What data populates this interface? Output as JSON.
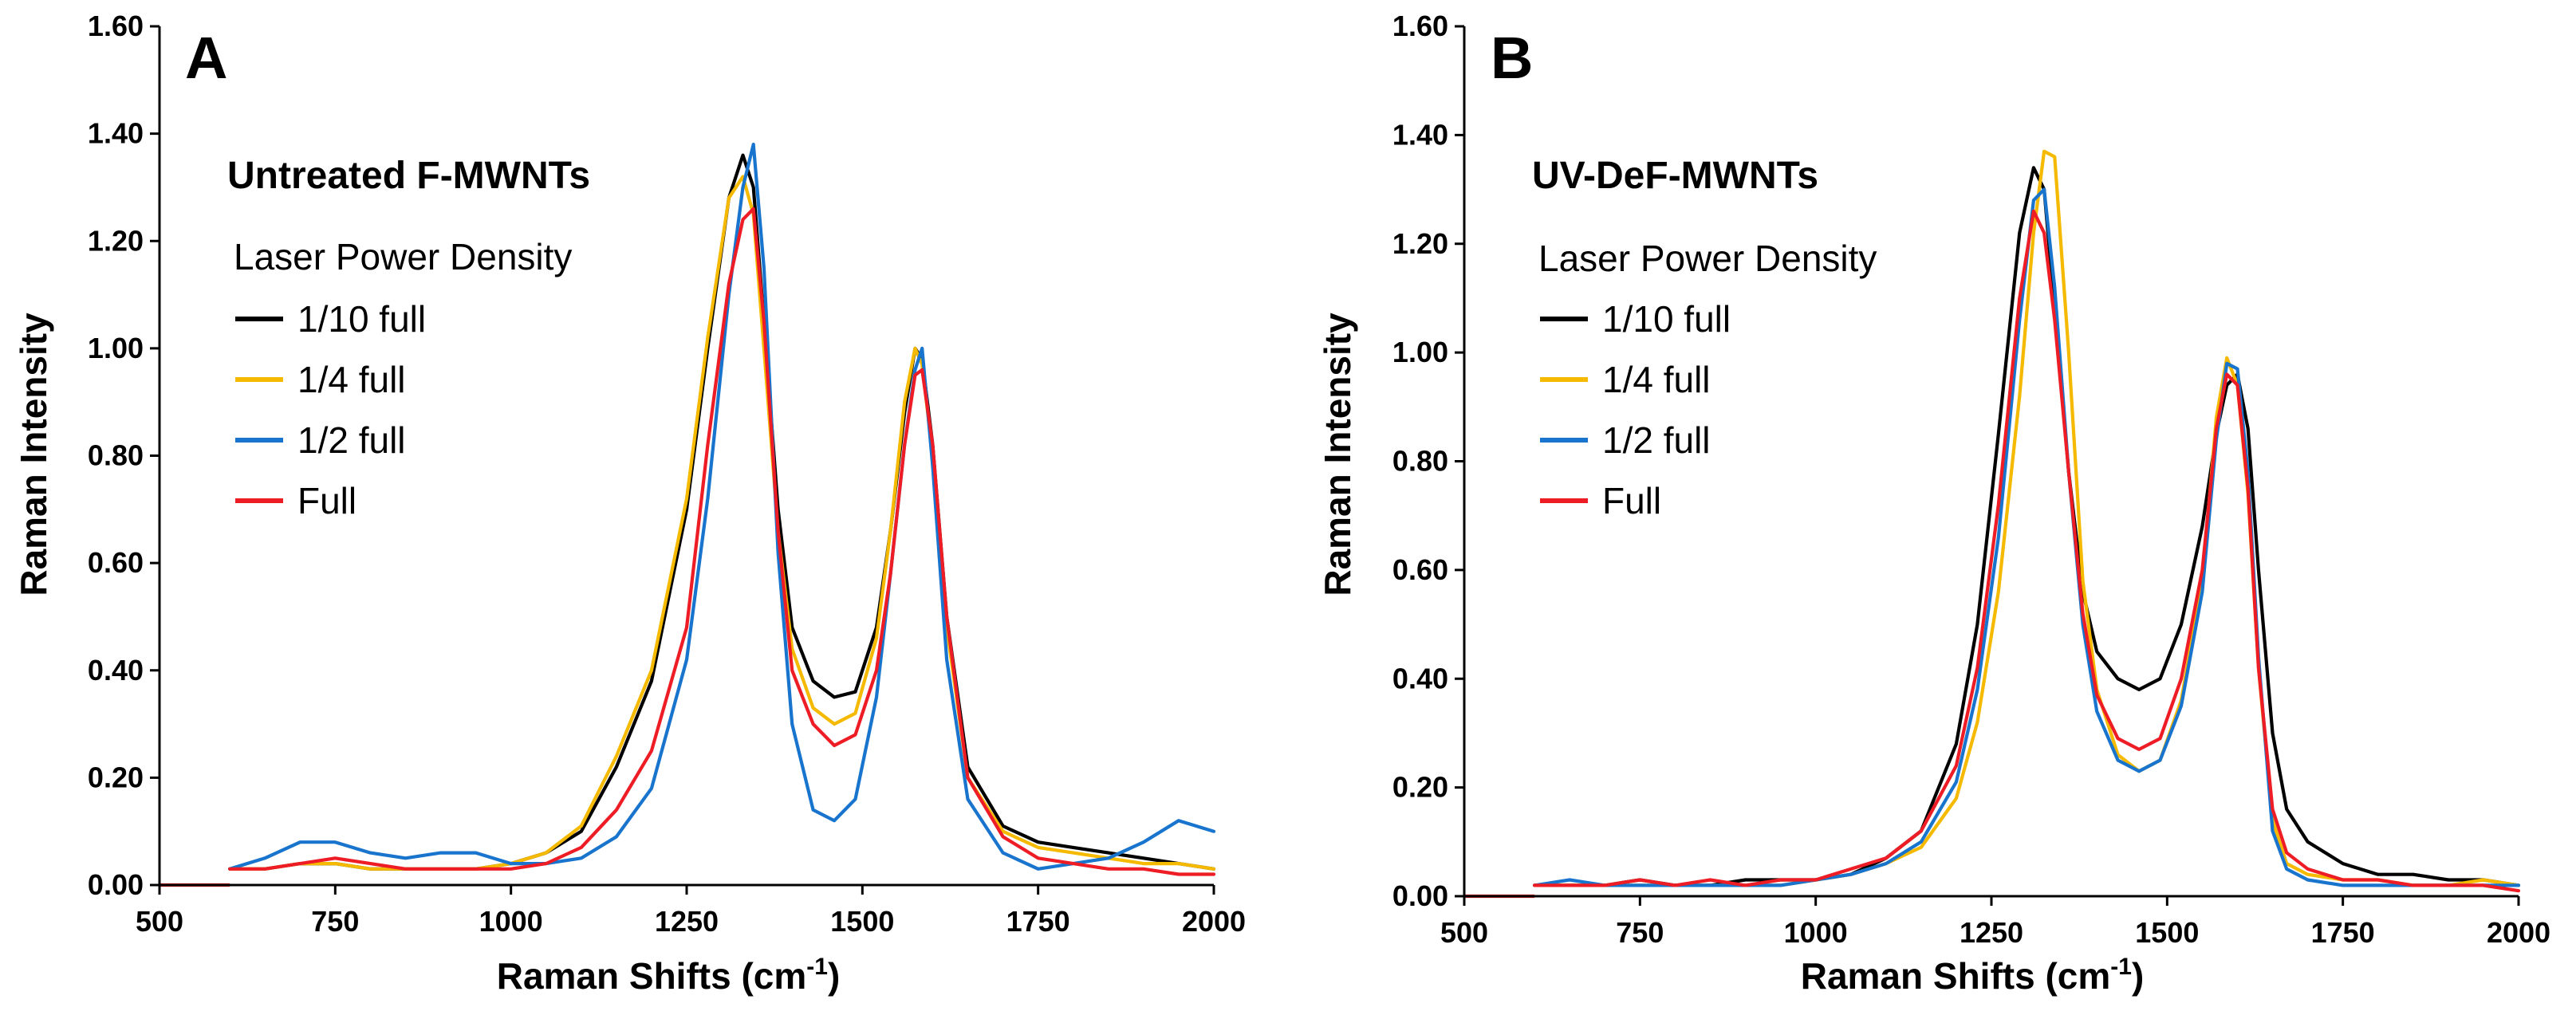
{
  "chart_data": [
    {
      "type": "line",
      "panel_label": "A",
      "title": "Untreated F-MWNTs",
      "xlabel": "Raman Shifts (cm",
      "xlabel_sup": "-1",
      "xlabel_end": ")",
      "ylabel": "Raman Intensity",
      "xlim": [
        500,
        2000
      ],
      "ylim": [
        0,
        1.6
      ],
      "x_ticks": [
        "500",
        "750",
        "1000",
        "1250",
        "1500",
        "1750",
        "2000"
      ],
      "y_ticks": [
        "0.00",
        "0.20",
        "0.40",
        "0.60",
        "0.80",
        "1.00",
        "1.20",
        "1.40",
        "1.60"
      ],
      "legend_title": "Laser Power Density",
      "legend_position": "top-left",
      "series": [
        {
          "name": "1/10 full",
          "color": "#000000",
          "x": [
            600,
            650,
            700,
            750,
            800,
            850,
            900,
            950,
            1000,
            1050,
            1100,
            1150,
            1200,
            1250,
            1280,
            1310,
            1330,
            1345,
            1360,
            1380,
            1400,
            1430,
            1460,
            1490,
            1520,
            1540,
            1560,
            1575,
            1585,
            1600,
            1620,
            1650,
            1700,
            1750,
            1800,
            1850,
            1900,
            1950,
            2000
          ],
          "y": [
            0.03,
            0.03,
            0.04,
            0.04,
            0.03,
            0.03,
            0.03,
            0.03,
            0.04,
            0.06,
            0.1,
            0.22,
            0.38,
            0.7,
            1.0,
            1.28,
            1.36,
            1.3,
            1.05,
            0.7,
            0.48,
            0.38,
            0.35,
            0.36,
            0.48,
            0.66,
            0.88,
            1.0,
            0.98,
            0.82,
            0.5,
            0.22,
            0.11,
            0.08,
            0.07,
            0.06,
            0.05,
            0.04,
            0.03
          ]
        },
        {
          "name": "1/4 full",
          "color": "#F5BA00",
          "x": [
            600,
            650,
            700,
            750,
            800,
            850,
            900,
            950,
            1000,
            1050,
            1100,
            1150,
            1200,
            1250,
            1280,
            1310,
            1330,
            1345,
            1360,
            1380,
            1400,
            1430,
            1460,
            1490,
            1520,
            1540,
            1560,
            1575,
            1585,
            1600,
            1620,
            1650,
            1700,
            1750,
            1800,
            1850,
            1900,
            1950,
            2000
          ],
          "y": [
            0.03,
            0.03,
            0.04,
            0.04,
            0.03,
            0.03,
            0.03,
            0.03,
            0.04,
            0.06,
            0.11,
            0.24,
            0.4,
            0.72,
            1.02,
            1.28,
            1.32,
            1.25,
            1.0,
            0.66,
            0.44,
            0.33,
            0.3,
            0.32,
            0.46,
            0.66,
            0.9,
            1.0,
            0.97,
            0.8,
            0.48,
            0.2,
            0.1,
            0.07,
            0.06,
            0.05,
            0.04,
            0.04,
            0.03
          ]
        },
        {
          "name": "1/2 full",
          "color": "#1874CD",
          "x": [
            600,
            650,
            700,
            750,
            800,
            850,
            900,
            950,
            1000,
            1050,
            1100,
            1150,
            1200,
            1250,
            1280,
            1310,
            1330,
            1345,
            1360,
            1380,
            1400,
            1430,
            1460,
            1490,
            1520,
            1540,
            1560,
            1575,
            1585,
            1600,
            1620,
            1650,
            1700,
            1750,
            1800,
            1850,
            1900,
            1950,
            2000
          ],
          "y": [
            0.03,
            0.05,
            0.08,
            0.08,
            0.06,
            0.05,
            0.06,
            0.06,
            0.04,
            0.04,
            0.05,
            0.09,
            0.18,
            0.42,
            0.72,
            1.1,
            1.3,
            1.38,
            1.15,
            0.62,
            0.3,
            0.14,
            0.12,
            0.16,
            0.35,
            0.58,
            0.82,
            0.96,
            1.0,
            0.78,
            0.42,
            0.16,
            0.06,
            0.03,
            0.04,
            0.05,
            0.08,
            0.12,
            0.1
          ]
        },
        {
          "name": "Full",
          "color": "#EE1C25",
          "x": [
            600,
            650,
            700,
            750,
            800,
            850,
            900,
            950,
            1000,
            1050,
            1100,
            1150,
            1200,
            1250,
            1280,
            1310,
            1330,
            1345,
            1360,
            1380,
            1400,
            1430,
            1460,
            1490,
            1520,
            1540,
            1560,
            1575,
            1585,
            1600,
            1620,
            1650,
            1700,
            1750,
            1800,
            1850,
            1900,
            1950,
            2000
          ],
          "y": [
            0.03,
            0.03,
            0.04,
            0.05,
            0.04,
            0.03,
            0.03,
            0.03,
            0.03,
            0.04,
            0.07,
            0.14,
            0.25,
            0.48,
            0.82,
            1.12,
            1.24,
            1.26,
            1.05,
            0.66,
            0.4,
            0.3,
            0.26,
            0.28,
            0.4,
            0.58,
            0.82,
            0.95,
            0.96,
            0.82,
            0.5,
            0.2,
            0.09,
            0.05,
            0.04,
            0.03,
            0.03,
            0.02,
            0.02
          ]
        }
      ]
    },
    {
      "type": "line",
      "panel_label": "B",
      "title": "UV-DeF-MWNTs",
      "xlabel": "Raman Shifts (cm",
      "xlabel_sup": "-1",
      "xlabel_end": ")",
      "ylabel": "Raman Intensity",
      "xlim": [
        500,
        2000
      ],
      "ylim": [
        0,
        1.6
      ],
      "x_ticks": [
        "500",
        "750",
        "1000",
        "1250",
        "1500",
        "1750",
        "2000"
      ],
      "y_ticks": [
        "0.00",
        "0.20",
        "0.40",
        "0.60",
        "0.80",
        "1.00",
        "1.20",
        "1.40",
        "1.60"
      ],
      "legend_title": "Laser Power Density",
      "legend_position": "top-left",
      "series": [
        {
          "name": "1/10 full",
          "color": "#000000",
          "x": [
            600,
            650,
            700,
            750,
            800,
            850,
            900,
            950,
            1000,
            1050,
            1100,
            1150,
            1200,
            1230,
            1260,
            1290,
            1310,
            1325,
            1340,
            1360,
            1380,
            1400,
            1430,
            1460,
            1490,
            1520,
            1550,
            1570,
            1585,
            1600,
            1615,
            1630,
            1650,
            1670,
            1700,
            1750,
            1800,
            1850,
            1900,
            1950,
            2000
          ],
          "y": [
            0.02,
            0.02,
            0.02,
            0.03,
            0.02,
            0.02,
            0.03,
            0.03,
            0.03,
            0.04,
            0.07,
            0.12,
            0.28,
            0.5,
            0.85,
            1.22,
            1.34,
            1.3,
            1.08,
            0.78,
            0.56,
            0.45,
            0.4,
            0.38,
            0.4,
            0.5,
            0.68,
            0.85,
            0.94,
            0.96,
            0.86,
            0.6,
            0.3,
            0.16,
            0.1,
            0.06,
            0.04,
            0.04,
            0.03,
            0.03,
            0.02
          ]
        },
        {
          "name": "1/4 full",
          "color": "#F5BA00",
          "x": [
            600,
            650,
            700,
            750,
            800,
            850,
            900,
            950,
            1000,
            1050,
            1100,
            1150,
            1200,
            1230,
            1260,
            1290,
            1310,
            1325,
            1340,
            1360,
            1380,
            1400,
            1430,
            1460,
            1490,
            1520,
            1550,
            1570,
            1585,
            1600,
            1615,
            1630,
            1650,
            1670,
            1700,
            1750,
            1800,
            1850,
            1900,
            1950,
            2000
          ],
          "y": [
            0.02,
            0.02,
            0.02,
            0.02,
            0.02,
            0.02,
            0.02,
            0.02,
            0.03,
            0.04,
            0.06,
            0.09,
            0.18,
            0.32,
            0.56,
            0.92,
            1.22,
            1.37,
            1.36,
            1.0,
            0.58,
            0.38,
            0.26,
            0.23,
            0.25,
            0.36,
            0.58,
            0.88,
            0.99,
            0.94,
            0.74,
            0.42,
            0.14,
            0.06,
            0.04,
            0.03,
            0.03,
            0.02,
            0.02,
            0.03,
            0.02
          ]
        },
        {
          "name": "1/2 full",
          "color": "#1874CD",
          "x": [
            600,
            650,
            700,
            750,
            800,
            850,
            900,
            950,
            1000,
            1050,
            1100,
            1150,
            1200,
            1230,
            1260,
            1290,
            1310,
            1325,
            1340,
            1360,
            1380,
            1400,
            1430,
            1460,
            1490,
            1520,
            1550,
            1570,
            1585,
            1600,
            1615,
            1630,
            1650,
            1670,
            1700,
            1750,
            1800,
            1850,
            1900,
            1950,
            2000
          ],
          "y": [
            0.02,
            0.03,
            0.02,
            0.02,
            0.02,
            0.02,
            0.02,
            0.02,
            0.03,
            0.04,
            0.06,
            0.1,
            0.21,
            0.38,
            0.66,
            1.06,
            1.28,
            1.3,
            1.12,
            0.78,
            0.5,
            0.34,
            0.25,
            0.23,
            0.25,
            0.35,
            0.56,
            0.84,
            0.98,
            0.97,
            0.78,
            0.44,
            0.12,
            0.05,
            0.03,
            0.02,
            0.02,
            0.02,
            0.02,
            0.02,
            0.02
          ]
        },
        {
          "name": "Full",
          "color": "#EE1C25",
          "x": [
            600,
            650,
            700,
            750,
            800,
            850,
            900,
            950,
            1000,
            1050,
            1100,
            1150,
            1200,
            1230,
            1260,
            1290,
            1310,
            1325,
            1340,
            1360,
            1380,
            1400,
            1430,
            1460,
            1490,
            1520,
            1550,
            1570,
            1585,
            1600,
            1615,
            1630,
            1650,
            1670,
            1700,
            1750,
            1800,
            1850,
            1900,
            1950,
            2000
          ],
          "y": [
            0.02,
            0.02,
            0.02,
            0.03,
            0.02,
            0.03,
            0.02,
            0.03,
            0.03,
            0.05,
            0.07,
            0.12,
            0.24,
            0.42,
            0.72,
            1.1,
            1.26,
            1.22,
            1.06,
            0.78,
            0.52,
            0.37,
            0.29,
            0.27,
            0.29,
            0.4,
            0.6,
            0.86,
            0.96,
            0.94,
            0.75,
            0.42,
            0.16,
            0.08,
            0.05,
            0.03,
            0.03,
            0.02,
            0.02,
            0.02,
            0.01
          ]
        }
      ]
    }
  ]
}
